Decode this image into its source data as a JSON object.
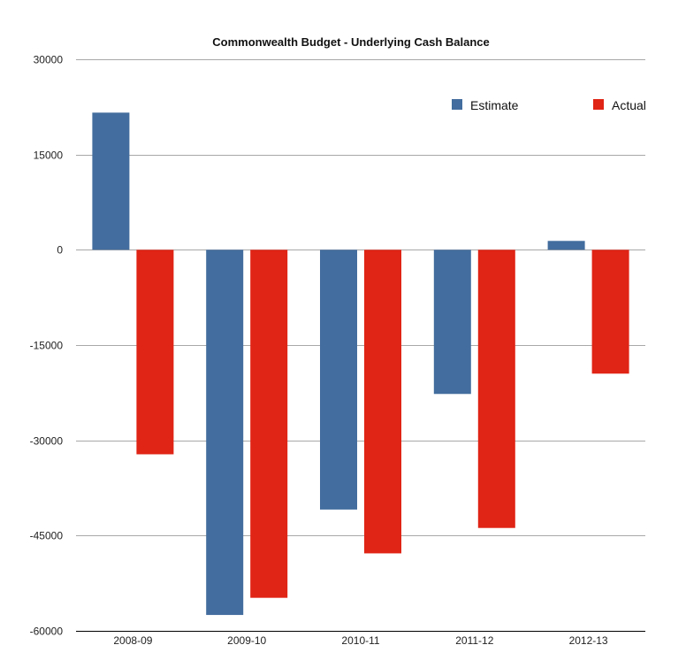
{
  "chart_data": {
    "type": "bar",
    "title": "Commonwealth Budget - Underlying Cash Balance",
    "xlabel": "",
    "ylabel": "",
    "categories": [
      "2008-09",
      "2009-10",
      "2010-11",
      "2011-12",
      "2012-13"
    ],
    "series": [
      {
        "name": "Estimate",
        "color": "#436d9e",
        "values": [
          21600,
          -57500,
          -40900,
          -22700,
          1400
        ]
      },
      {
        "name": "Actual",
        "color": "#e02415",
        "values": [
          -32200,
          -54800,
          -47800,
          -43800,
          -19500
        ]
      }
    ],
    "ylim": [
      -60000,
      30000
    ],
    "yticks": [
      30000,
      15000,
      0,
      -15000,
      -30000,
      -45000,
      -60000
    ],
    "ytick_labels": [
      "30000",
      "15000",
      "0",
      "-15000",
      "-30000",
      "-45000",
      "-60000"
    ],
    "grid": true,
    "legend_position": "top-right"
  }
}
